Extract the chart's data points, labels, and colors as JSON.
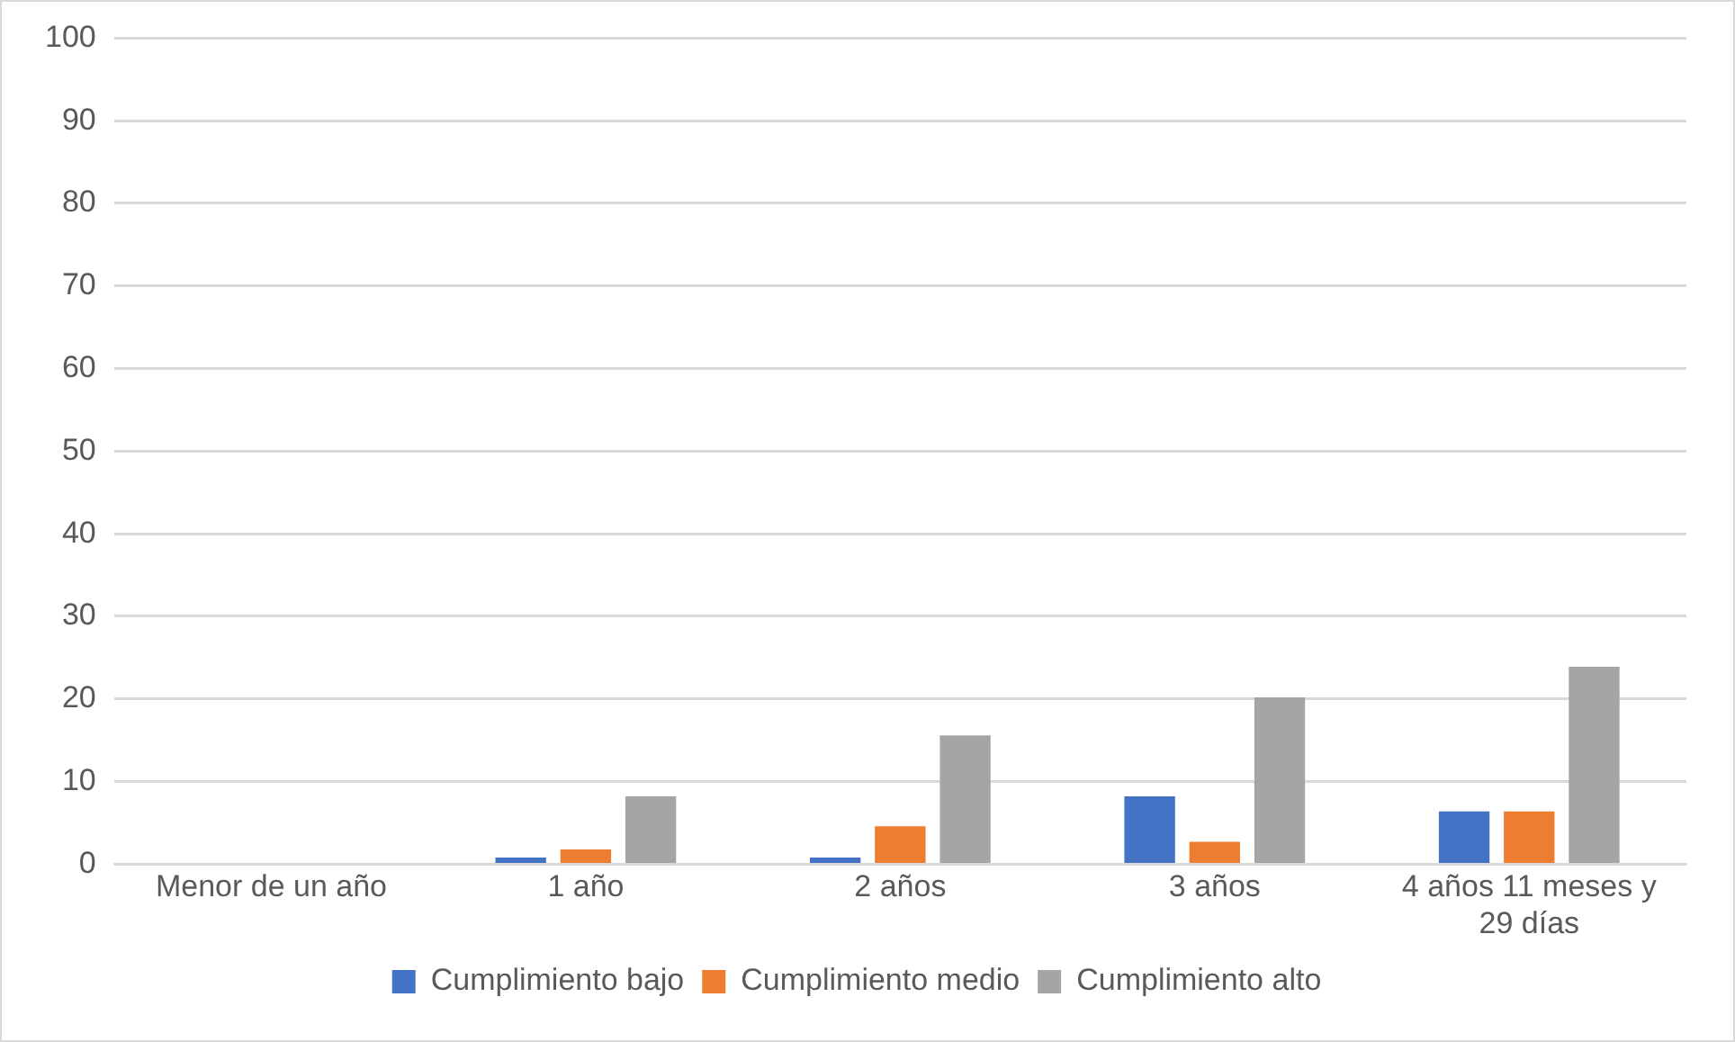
{
  "chart_data": {
    "type": "bar",
    "categories": [
      "Menor de un año",
      "1 año",
      "2 años",
      "3 años",
      "4 años 11 meses y 29 días"
    ],
    "series": [
      {
        "name": "Cumplimiento bajo",
        "color": "#4472c4",
        "values": [
          0,
          0.8,
          0.8,
          8.2,
          6.4
        ]
      },
      {
        "name": "Cumplimiento medio",
        "color": "#ed7d31",
        "values": [
          0,
          1.8,
          4.6,
          2.7,
          6.4
        ]
      },
      {
        "name": "Cumplimiento alto",
        "color": "#a5a5a5",
        "values": [
          0,
          8.2,
          15.6,
          20.2,
          23.9
        ]
      }
    ],
    "ylim": [
      0,
      100
    ],
    "yticks": [
      0,
      10,
      20,
      30,
      40,
      50,
      60,
      70,
      80,
      90,
      100
    ],
    "grid": "y",
    "legend": "bottom"
  }
}
